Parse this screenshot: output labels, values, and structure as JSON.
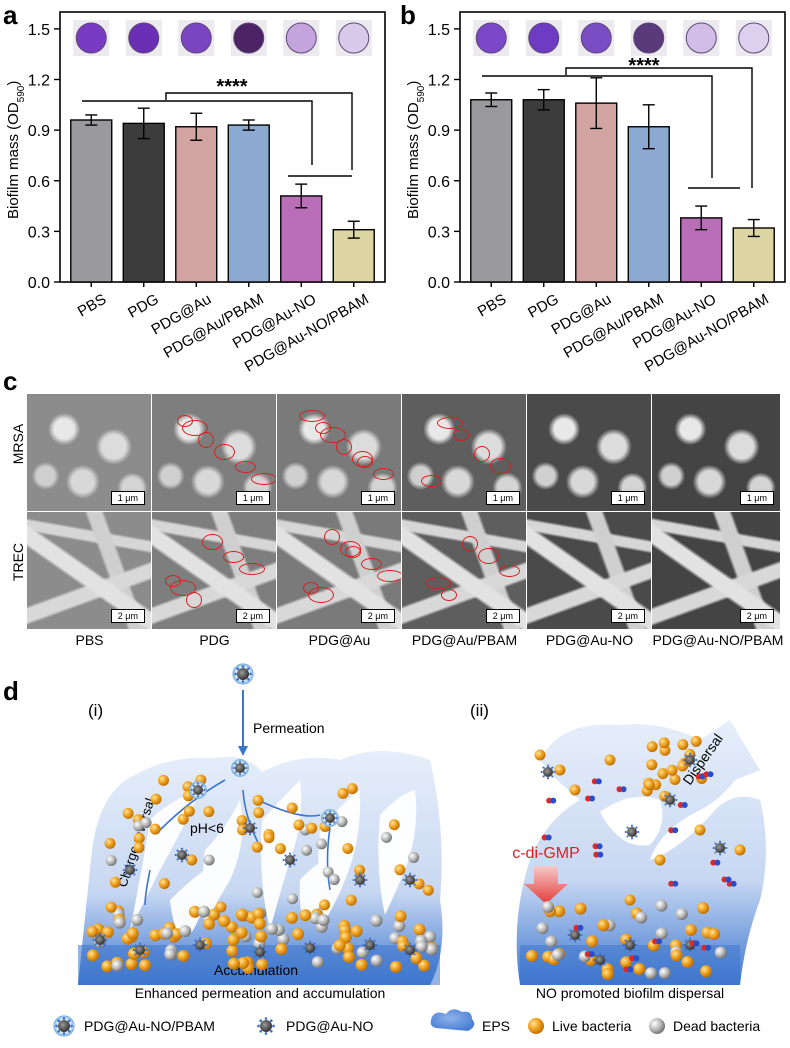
{
  "panels": {
    "a": {
      "label": "a"
    },
    "b": {
      "label": "b"
    },
    "c": {
      "label": "c"
    },
    "d": {
      "label": "d"
    }
  },
  "chart_data": [
    {
      "type": "bar",
      "panel": "a",
      "categories": [
        "PBS",
        "PDG",
        "PDG@Au",
        "PDG@Au/PBAM",
        "PDG@Au-NO",
        "PDG@Au-NO/PBAM"
      ],
      "values": [
        0.96,
        0.94,
        0.92,
        0.93,
        0.51,
        0.31
      ],
      "errors": [
        0.03,
        0.09,
        0.08,
        0.03,
        0.07,
        0.05
      ],
      "colors": [
        "#9a9a9c",
        "#3c3c3c",
        "#d3a5a2",
        "#8caad1",
        "#b96fb7",
        "#ddd5a2"
      ],
      "ylabel": "Biofilm mass (OD",
      "ylabel_sub": "590",
      "ylabel_tail": ")",
      "ylim": [
        0,
        1.6
      ],
      "yticks": [
        "0.0",
        "0.3",
        "0.6",
        "0.9",
        "1.2",
        "1.5"
      ],
      "significance": "****",
      "well_colors": [
        "#7a3bc4",
        "#6b2fb6",
        "#7a45c0",
        "#4c2466",
        "#c3a4dc",
        "#d9c9ea"
      ]
    },
    {
      "type": "bar",
      "panel": "b",
      "categories": [
        "PBS",
        "PDG",
        "PDG@Au",
        "PDG@Au/PBAM",
        "PDG@Au-NO",
        "PDG@Au-NO/PBAM"
      ],
      "values": [
        1.08,
        1.08,
        1.06,
        0.92,
        0.38,
        0.32
      ],
      "errors": [
        0.04,
        0.06,
        0.15,
        0.13,
        0.07,
        0.05
      ],
      "colors": [
        "#9a9a9c",
        "#3c3c3c",
        "#d3a5a2",
        "#8caad1",
        "#b96fb7",
        "#ddd5a2"
      ],
      "ylabel": "Biofilm mass (OD",
      "ylabel_sub": "590",
      "ylabel_tail": ")",
      "ylim": [
        0,
        1.6
      ],
      "yticks": [
        "0.0",
        "0.3",
        "0.6",
        "0.9",
        "1.2",
        "1.5"
      ],
      "significance": "****",
      "well_colors": [
        "#7a48c8",
        "#6e3cc2",
        "#7b4dc5",
        "#5a3a7a",
        "#d2bde6",
        "#ddd0ee"
      ]
    }
  ],
  "sem": {
    "rows": [
      "MRSA",
      "TREC"
    ],
    "columns": [
      "PBS",
      "PDG",
      "PDG@Au",
      "PDG@Au/PBAM",
      "PDG@Au-NO",
      "PDG@Au-NO/PBAM"
    ],
    "scalebars": [
      "1 μm",
      "2 μm"
    ]
  },
  "schematic": {
    "left_title": "(i)",
    "right_title": "(ii)",
    "permeation": "Permeation",
    "charge_reversal": "Charge reversal",
    "ph": "pH<6",
    "accumulation": "Accumulation",
    "left_caption": "Enhanced permeation and accumulation",
    "signal": "c-di-GMP",
    "dispersal": "Dispersal",
    "right_caption": "NO promoted biofilm dispersal",
    "legend": {
      "pbam": "PDG@Au-NO/PBAM",
      "no": "PDG@Au-NO",
      "eps": "EPS",
      "live": "Live bacteria",
      "dead": "Dead bacteria"
    }
  }
}
